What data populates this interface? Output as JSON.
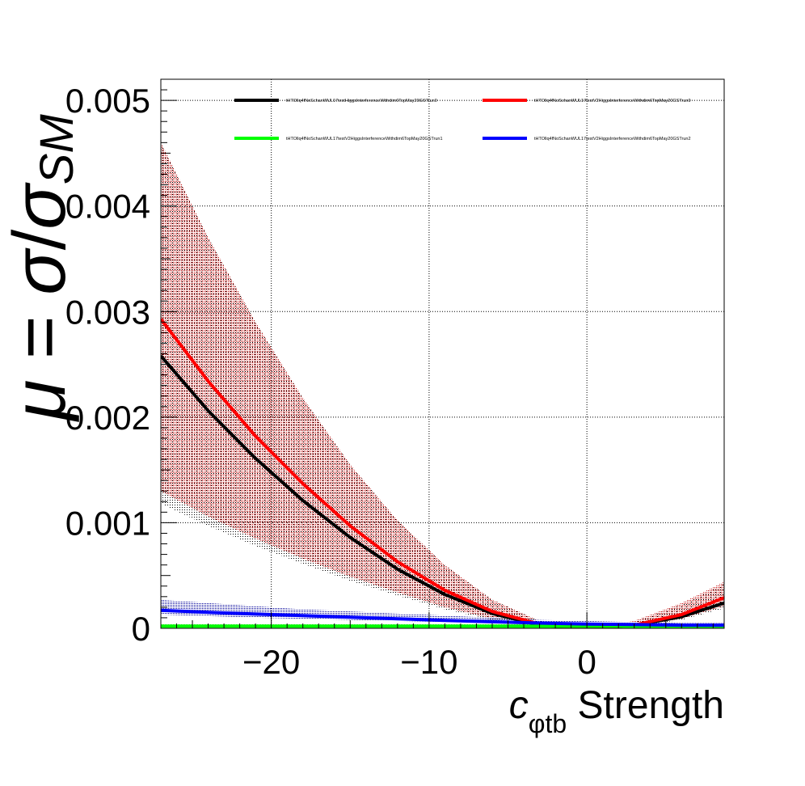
{
  "chart_data": {
    "type": "line",
    "xlabel": {
      "base": "c",
      "sub": "φtb",
      "rest": " Strength"
    },
    "ylabel": {
      "mu": "μ",
      "eq": " = ",
      "sigma": "σ",
      "slash": "/",
      "sigma2": "σ",
      "sub": "SM"
    },
    "xlim": [
      -27,
      8.7
    ],
    "ylim": [
      0,
      0.0052
    ],
    "x_ticks": [
      {
        "value": -20,
        "label": "−20"
      },
      {
        "value": -10,
        "label": "−10"
      },
      {
        "value": 0,
        "label": "0"
      }
    ],
    "y_ticks": [
      {
        "value": 0,
        "label": "0"
      },
      {
        "value": 0.001,
        "label": "0.001"
      },
      {
        "value": 0.002,
        "label": "0.002"
      },
      {
        "value": 0.003,
        "label": "0.003"
      },
      {
        "value": 0.004,
        "label": "0.004"
      },
      {
        "value": 0.005,
        "label": "0.005"
      }
    ],
    "grid": true,
    "legend_position": "top",
    "series": [
      {
        "name": "tHTOllq4fNoSchanWUL17testHiggsInterferenceWithdim6TopMay20GSTrun0",
        "color": "#000000",
        "band_color": "#000000",
        "x": [
          -27,
          -24,
          -21,
          -18,
          -15,
          -12,
          -9,
          -6,
          -3,
          0,
          3,
          6,
          8.7
        ],
        "y": [
          0.00258,
          0.00206,
          0.00161,
          0.00121,
          0.00086,
          0.00056,
          0.00032,
          0.00014,
          3e-05,
          0.0,
          3e-05,
          0.00011,
          0.00024
        ],
        "band_low": [
          0.00118,
          0.00097,
          0.00078,
          0.00061,
          0.00045,
          0.00031,
          0.00018,
          8e-05,
          2e-05,
          0.0,
          2e-05,
          8e-05,
          0.00019
        ],
        "band_high": [
          0.0046,
          0.0037,
          0.0029,
          0.00218,
          0.00155,
          0.00102,
          0.0006,
          0.00027,
          7e-05,
          0.0,
          6e-05,
          0.00022,
          0.00042
        ]
      },
      {
        "name": "tHTOllq4fNoSchanWUL17testV2HiggsInterferenceWithdim6TopMay20GSTrun0",
        "color": "#ff0000",
        "band_color": "#c00000",
        "x": [
          -27,
          -24,
          -21,
          -18,
          -15,
          -12,
          -9,
          -6,
          -3,
          0,
          3,
          6,
          8.7
        ],
        "y": [
          0.00293,
          0.00234,
          0.00182,
          0.00137,
          0.00097,
          0.00063,
          0.00036,
          0.00016,
          4e-05,
          0.0,
          3e-05,
          0.00013,
          0.00029
        ],
        "band_low": [
          0.0013,
          0.00106,
          0.00085,
          0.00066,
          0.00049,
          0.00034,
          0.0002,
          9e-05,
          2e-05,
          0.0,
          2e-05,
          9e-05,
          0.00021
        ],
        "band_high": [
          0.0046,
          0.0037,
          0.0029,
          0.00218,
          0.00155,
          0.00102,
          0.0006,
          0.00027,
          7e-05,
          0.0,
          7e-05,
          0.00024,
          0.00044
        ]
      },
      {
        "name": "tHTOllq4fNoSchanWUL17testV2HiggsInterferenceWithdim6TopMay20GSTrun1",
        "color": "#00ff00",
        "band_color": "#00cc00",
        "x": [
          -27,
          -18,
          -9,
          0,
          8.7
        ],
        "y": [
          2e-05,
          2e-05,
          2e-05,
          2e-05,
          2e-05
        ],
        "band_low": [
          1e-05,
          1e-05,
          1e-05,
          1e-05,
          1e-05
        ],
        "band_high": [
          4e-05,
          4e-05,
          4e-05,
          4e-05,
          4e-05
        ]
      },
      {
        "name": "tHTOllq4fNoSchanWUL17testV2HiggsInterferenceWithdim6TopMay20GSTrun2",
        "color": "#0000ff",
        "band_color": "#000099",
        "x": [
          -27,
          -24,
          -21,
          -18,
          -15,
          -12,
          -9,
          -6,
          -3,
          0,
          3,
          6,
          8.7
        ],
        "y": [
          0.00017,
          0.000152,
          0.000135,
          0.00012,
          0.000105,
          9e-05,
          7.5e-05,
          6.2e-05,
          5e-05,
          4e-05,
          3.5e-05,
          3e-05,
          3e-05
        ],
        "band_low": [
          0.00013,
          0.000115,
          0.0001,
          9e-05,
          8e-05,
          7e-05,
          6e-05,
          5e-05,
          4e-05,
          3e-05,
          2.5e-05,
          2e-05,
          2e-05
        ],
        "band_high": [
          0.00027,
          0.00024,
          0.00021,
          0.00018,
          0.00016,
          0.00014,
          0.00012,
          0.0001,
          8e-05,
          7e-05,
          6e-05,
          5e-05,
          5e-05
        ]
      }
    ]
  }
}
